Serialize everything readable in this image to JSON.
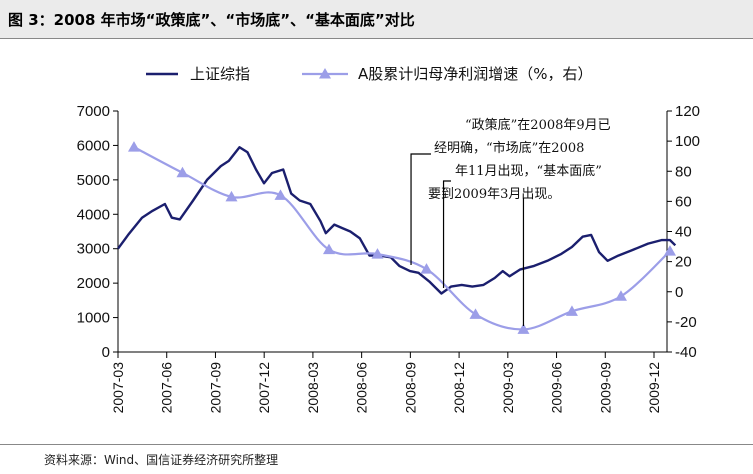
{
  "header": {
    "title": "图 3：2008 年市场“政策底”、“市场底”、“基本面底”对比"
  },
  "footer": {
    "source": "资料来源：Wind、国信证券经济研究所整理"
  },
  "colors": {
    "index_line": "#1b1f6e",
    "ratio_line": "#9c9ee8",
    "axis": "#000000",
    "title_bg": "#ebebeb"
  },
  "chart_data": {
    "type": "line",
    "title": "",
    "xlabel": "",
    "ylabel_left": "",
    "ylabel_right": "",
    "x_ticks": [
      "2007-03",
      "2007-06",
      "2007-09",
      "2007-12",
      "2008-03",
      "2008-06",
      "2008-09",
      "2008-12",
      "2009-03",
      "2009-06",
      "2009-09",
      "2009-12"
    ],
    "ylim_left": [
      0,
      7000
    ],
    "yticks_left": [
      "0",
      "1000",
      "2000",
      "3000",
      "4000",
      "5000",
      "6000",
      "7000"
    ],
    "ylim_right": [
      -40,
      120
    ],
    "yticks_right": [
      "-40",
      "-20",
      "0",
      "20",
      "40",
      "60",
      "80",
      "100",
      "120"
    ],
    "legend_position": "top",
    "grid": false,
    "series": [
      {
        "name": "上证综指",
        "axis": "left",
        "points": [
          [
            "2007-03-01",
            3000
          ],
          [
            "2007-03-20",
            3400
          ],
          [
            "2007-04-15",
            3900
          ],
          [
            "2007-05-05",
            4100
          ],
          [
            "2007-05-28",
            4300
          ],
          [
            "2007-06-10",
            3900
          ],
          [
            "2007-06-25",
            3850
          ],
          [
            "2007-07-20",
            4400
          ],
          [
            "2007-08-15",
            5000
          ],
          [
            "2007-09-10",
            5400
          ],
          [
            "2007-09-25",
            5550
          ],
          [
            "2007-10-15",
            5950
          ],
          [
            "2007-10-30",
            5800
          ],
          [
            "2007-11-15",
            5300
          ],
          [
            "2007-11-30",
            4900
          ],
          [
            "2007-12-15",
            5200
          ],
          [
            "2008-01-05",
            5300
          ],
          [
            "2008-01-20",
            4600
          ],
          [
            "2008-02-05",
            4400
          ],
          [
            "2008-02-25",
            4300
          ],
          [
            "2008-03-15",
            3800
          ],
          [
            "2008-03-25",
            3450
          ],
          [
            "2008-04-10",
            3700
          ],
          [
            "2008-04-25",
            3600
          ],
          [
            "2008-05-10",
            3500
          ],
          [
            "2008-05-28",
            3300
          ],
          [
            "2008-06-15",
            2800
          ],
          [
            "2008-07-05",
            2800
          ],
          [
            "2008-07-25",
            2750
          ],
          [
            "2008-08-10",
            2500
          ],
          [
            "2008-08-30",
            2350
          ],
          [
            "2008-09-15",
            2300
          ],
          [
            "2008-10-05",
            2050
          ],
          [
            "2008-10-28",
            1700
          ],
          [
            "2008-11-15",
            1900
          ],
          [
            "2008-12-05",
            1950
          ],
          [
            "2008-12-25",
            1900
          ],
          [
            "2009-01-15",
            1950
          ],
          [
            "2009-02-05",
            2150
          ],
          [
            "2009-02-20",
            2350
          ],
          [
            "2009-03-05",
            2200
          ],
          [
            "2009-03-25",
            2400
          ],
          [
            "2009-04-20",
            2500
          ],
          [
            "2009-05-15",
            2650
          ],
          [
            "2009-06-10",
            2850
          ],
          [
            "2009-06-30",
            3050
          ],
          [
            "2009-07-20",
            3350
          ],
          [
            "2009-08-05",
            3400
          ],
          [
            "2009-08-20",
            2900
          ],
          [
            "2009-09-05",
            2650
          ],
          [
            "2009-09-25",
            2800
          ],
          [
            "2009-10-20",
            2950
          ],
          [
            "2009-11-20",
            3150
          ],
          [
            "2009-12-15",
            3250
          ],
          [
            "2009-12-31",
            3250
          ],
          [
            "2010-01-10",
            3100
          ]
        ]
      },
      {
        "name": "A股累计归母净利润增速（%，右）",
        "axis": "right",
        "marker": "triangle",
        "points": [
          [
            "2007-03-31",
            96
          ],
          [
            "2007-06-30",
            79
          ],
          [
            "2007-09-30",
            63
          ],
          [
            "2007-12-31",
            64
          ],
          [
            "2008-03-31",
            28
          ],
          [
            "2008-06-30",
            25
          ],
          [
            "2008-09-30",
            15
          ],
          [
            "2008-12-31",
            -15
          ],
          [
            "2009-03-31",
            -25
          ],
          [
            "2009-06-30",
            -13
          ],
          [
            "2009-09-30",
            -3
          ],
          [
            "2009-12-31",
            27
          ]
        ]
      }
    ],
    "annotations": {
      "text_lines": [
        "“政策底”在2008年9月已",
        "经明确，“市场底”在2008",
        "年11月出现，“基本面底”",
        "要到2009年3月出现。"
      ],
      "markers": [
        {
          "label": "政策底",
          "date": "2008-09-01"
        },
        {
          "label": "市场底",
          "date": "2008-11-01"
        },
        {
          "label": "基本面底",
          "date": "2009-03-31"
        }
      ]
    }
  }
}
